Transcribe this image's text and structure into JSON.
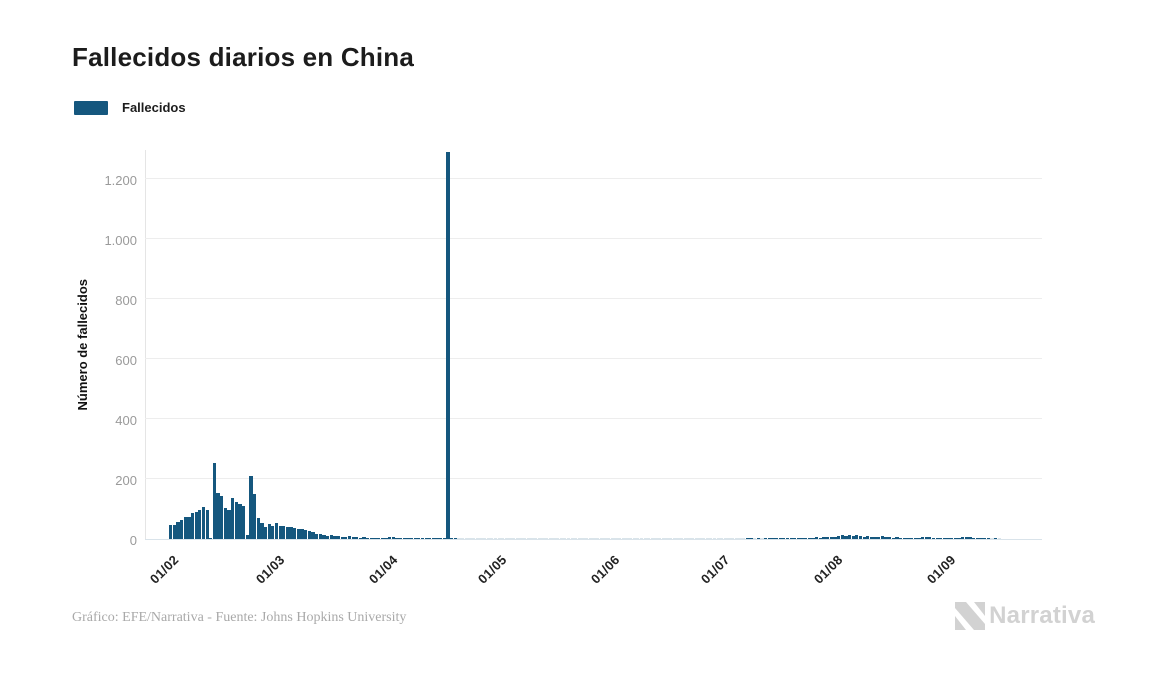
{
  "title": "Fallecidos diarios en China",
  "legend": {
    "label": "Fallecidos",
    "color": "#15577e"
  },
  "footer": {
    "credit": "Gráfico: EFE/Narrativa - Fuente: Johns Hopkins University"
  },
  "logo": {
    "text": "Narrativa"
  },
  "chart_data": {
    "type": "bar",
    "title": "Fallecidos diarios en China",
    "xlabel": "",
    "ylabel": "Número de fallecidos",
    "ylim": [
      0,
      1300
    ],
    "grid": "horizontal",
    "legend_position": "top-left",
    "bar_color": "#15577e",
    "y_tick_step": 200,
    "y_ticks": [
      "0",
      "200",
      "400",
      "600",
      "800",
      "1.000",
      "1.200"
    ],
    "x_ticks": [
      "01/02",
      "01/03",
      "01/04",
      "01/05",
      "01/06",
      "01/07",
      "01/08",
      "01/09"
    ],
    "x_tick_day_offsets": [
      0,
      29,
      60,
      90,
      121,
      151,
      182,
      213
    ],
    "months": [
      {
        "m": "02",
        "days": 29
      },
      {
        "m": "03",
        "days": 31
      },
      {
        "m": "04",
        "days": 30
      },
      {
        "m": "05",
        "days": 31
      },
      {
        "m": "06",
        "days": 30
      },
      {
        "m": "07",
        "days": 31
      },
      {
        "m": "08",
        "days": 31
      },
      {
        "m": "09",
        "days": 15
      }
    ],
    "series": [
      {
        "name": "Fallecidos",
        "values": [
          46,
          46,
          57,
          65,
          73,
          73,
          86,
          89,
          97,
          108,
          97,
          5,
          254,
          154,
          142,
          105,
          98,
          136,
          122,
          118,
          109,
          15,
          210,
          150,
          71,
          52,
          39,
          50,
          44,
          52,
          44,
          42,
          39,
          39,
          36,
          33,
          33,
          30,
          27,
          22,
          17,
          17,
          13,
          11,
          13,
          11,
          10,
          8,
          7,
          10,
          7,
          6,
          5,
          6,
          5,
          3,
          5,
          3,
          2,
          1,
          7,
          6,
          4,
          3,
          2,
          2,
          1,
          2,
          1,
          1,
          2,
          1,
          3,
          1,
          2,
          3,
          1290,
          1,
          1,
          0,
          0,
          0,
          0,
          0,
          0,
          0,
          0,
          0,
          0,
          0,
          0,
          0,
          0,
          0,
          0,
          0,
          0,
          0,
          0,
          0,
          0,
          0,
          0,
          0,
          0,
          0,
          0,
          0,
          0,
          0,
          0,
          0,
          0,
          0,
          0,
          0,
          0,
          0,
          0,
          0,
          0,
          0,
          0,
          0,
          0,
          0,
          0,
          0,
          0,
          0,
          0,
          0,
          0,
          0,
          0,
          0,
          0,
          0,
          0,
          0,
          0,
          0,
          0,
          0,
          0,
          0,
          0,
          0,
          0,
          0,
          0,
          0,
          0,
          0,
          0,
          0,
          0,
          0,
          1,
          1,
          0,
          1,
          0,
          1,
          2,
          1,
          1,
          2,
          1,
          3,
          2,
          2,
          3,
          4,
          3,
          5,
          4,
          6,
          5,
          7,
          8,
          7,
          8,
          10,
          12,
          10,
          12,
          10,
          12,
          10,
          8,
          10,
          8,
          7,
          8,
          10,
          8,
          7,
          5,
          7,
          5,
          3,
          3,
          5,
          3,
          3,
          7,
          8,
          7,
          5,
          3,
          2,
          3,
          3,
          2,
          3,
          5,
          7,
          8,
          7,
          5,
          2,
          1,
          1,
          1,
          0,
          1,
          0
        ]
      }
    ]
  }
}
